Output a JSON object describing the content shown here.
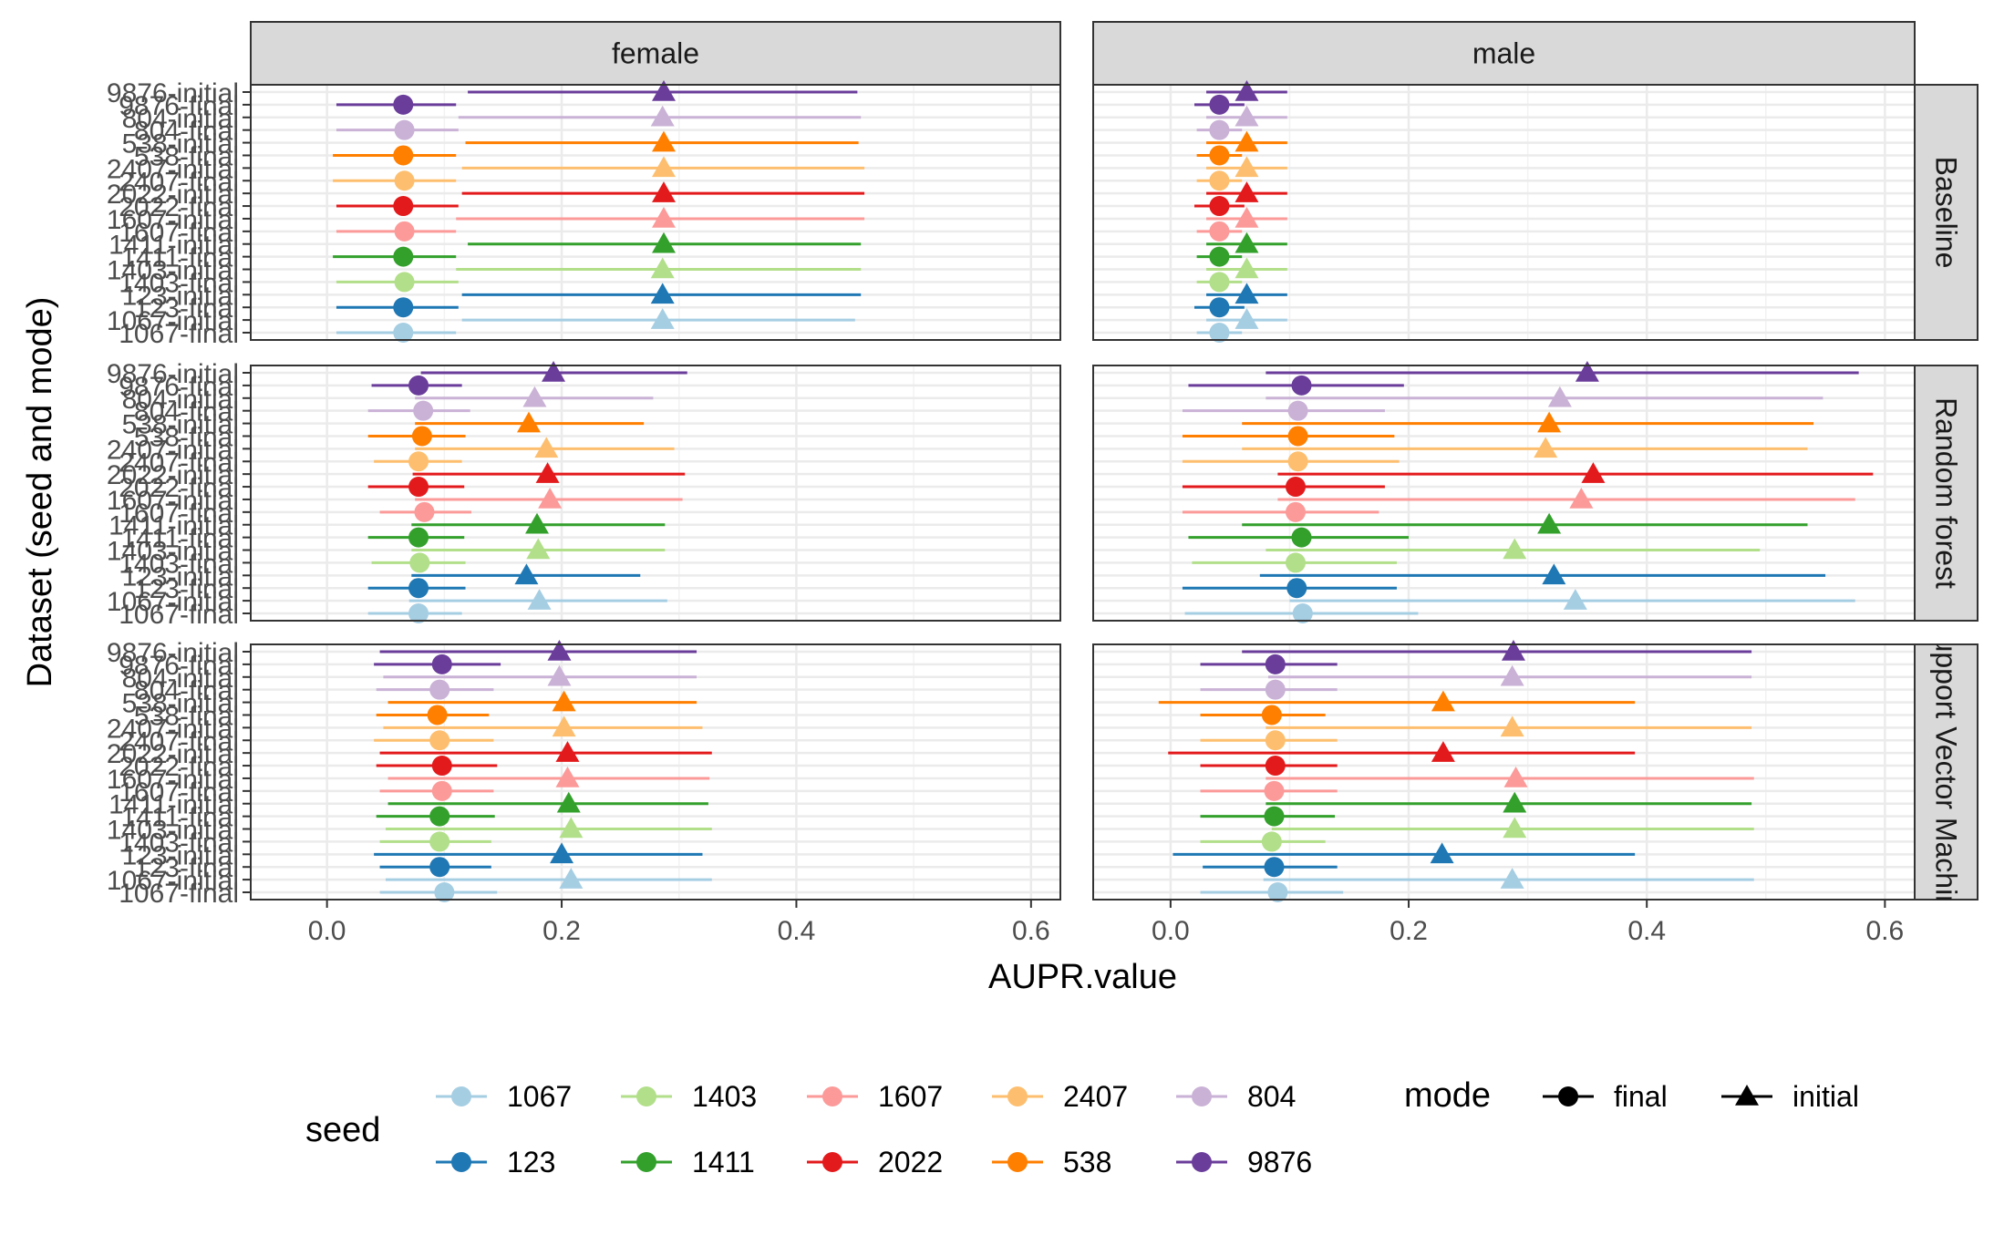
{
  "chart_data": {
    "type": "scatter",
    "subtype": "point-range (dot and whisker)",
    "xlabel": "AUPR.value",
    "ylabel": "Dataset (seed and mode)",
    "xlim": [
      -0.065,
      0.625
    ],
    "x_ticks": [
      0.0,
      0.2,
      0.4,
      0.6
    ],
    "x_tick_labels": [
      "0.0",
      "0.2",
      "0.4",
      "0.6"
    ],
    "facet_columns": [
      "female",
      "male"
    ],
    "facet_rows": [
      "Baseline",
      "Random forest",
      "Support Vector Machine"
    ],
    "facet_row_labels_visible": [
      "Baseline",
      "Random forest",
      "pport Vector Mach"
    ],
    "y_categories": [
      "1067-final",
      "1067-initial",
      "123-final",
      "123-initial",
      "1403-final",
      "1403-initial",
      "1411-final",
      "1411-initial",
      "1607-final",
      "1607-initial",
      "2022-final",
      "2022-initial",
      "2407-final",
      "2407-initial",
      "538-final",
      "538-initial",
      "804-final",
      "804-initial",
      "9876-final",
      "9876-initial"
    ],
    "y_tick_labels": [
      "1067-final",
      "1067-initial",
      "123-final",
      "123-initial",
      "1403-final",
      "1403-initial",
      "1411-final",
      "1411-initial",
      "1607-final",
      "1607-initial",
      "2022-final",
      "2022-initial",
      "2407-final",
      "2407-initial",
      "538-final",
      "538-initial",
      "804-final",
      "804-initial",
      "9876-final",
      "9876-initial"
    ],
    "seeds": [
      "1067",
      "123",
      "1403",
      "1411",
      "1607",
      "2022",
      "2407",
      "538",
      "804",
      "9876"
    ],
    "seed_colors": {
      "1067": "#A6CEE3",
      "123": "#1F78B4",
      "1403": "#B2DF8A",
      "1411": "#33A02C",
      "1607": "#FB9A99",
      "2022": "#E31A1C",
      "2407": "#FDBF6F",
      "538": "#FF7F00",
      "804": "#CAB2D6",
      "9876": "#6A3D9A"
    },
    "grid": true,
    "legend": {
      "position": "bottom",
      "seed_title": "seed",
      "seed_order": [
        "1067",
        "1403",
        "1607",
        "2407",
        "804",
        "123",
        "1411",
        "2022",
        "538",
        "9876"
      ],
      "mode_title": "mode",
      "mode_entries": [
        {
          "label": "final",
          "shape": "circle"
        },
        {
          "label": "initial",
          "shape": "triangle"
        }
      ]
    },
    "panels": [
      {
        "column": "female",
        "row": "Baseline",
        "final": {
          "1067": [
            0.065,
            0.008,
            0.11
          ],
          "123": [
            0.065,
            0.008,
            0.112
          ],
          "1403": [
            0.066,
            0.008,
            0.112
          ],
          "1411": [
            0.065,
            0.005,
            0.11
          ],
          "1607": [
            0.066,
            0.008,
            0.11
          ],
          "2022": [
            0.065,
            0.008,
            0.112
          ],
          "2407": [
            0.066,
            0.005,
            0.11
          ],
          "538": [
            0.065,
            0.005,
            0.11
          ],
          "804": [
            0.066,
            0.008,
            0.112
          ],
          "9876": [
            0.065,
            0.008,
            0.11
          ]
        },
        "initial": {
          "1067": [
            0.286,
            0.115,
            0.45
          ],
          "123": [
            0.286,
            0.115,
            0.455
          ],
          "1403": [
            0.286,
            0.11,
            0.455
          ],
          "1411": [
            0.287,
            0.12,
            0.455
          ],
          "1607": [
            0.287,
            0.11,
            0.458
          ],
          "2022": [
            0.287,
            0.115,
            0.458
          ],
          "2407": [
            0.287,
            0.115,
            0.458
          ],
          "538": [
            0.287,
            0.118,
            0.453
          ],
          "804": [
            0.286,
            0.112,
            0.455
          ],
          "9876": [
            0.287,
            0.12,
            0.452
          ]
        }
      },
      {
        "column": "male",
        "row": "Baseline",
        "final": {
          "1067": [
            0.041,
            0.022,
            0.06
          ],
          "123": [
            0.041,
            0.02,
            0.062
          ],
          "1403": [
            0.041,
            0.022,
            0.06
          ],
          "1411": [
            0.041,
            0.022,
            0.06
          ],
          "1607": [
            0.041,
            0.022,
            0.06
          ],
          "2022": [
            0.041,
            0.02,
            0.062
          ],
          "2407": [
            0.041,
            0.022,
            0.06
          ],
          "538": [
            0.041,
            0.022,
            0.06
          ],
          "804": [
            0.041,
            0.022,
            0.06
          ],
          "9876": [
            0.041,
            0.02,
            0.062
          ]
        },
        "initial": {
          "1067": [
            0.064,
            0.03,
            0.098
          ],
          "123": [
            0.064,
            0.03,
            0.098
          ],
          "1403": [
            0.064,
            0.03,
            0.098
          ],
          "1411": [
            0.064,
            0.03,
            0.098
          ],
          "1607": [
            0.064,
            0.03,
            0.098
          ],
          "2022": [
            0.064,
            0.03,
            0.098
          ],
          "2407": [
            0.064,
            0.03,
            0.098
          ],
          "538": [
            0.064,
            0.03,
            0.098
          ],
          "804": [
            0.064,
            0.03,
            0.098
          ],
          "9876": [
            0.064,
            0.03,
            0.098
          ]
        }
      },
      {
        "column": "female",
        "row": "Random forest",
        "final": {
          "1067": [
            0.078,
            0.035,
            0.115
          ],
          "123": [
            0.078,
            0.035,
            0.118
          ],
          "1403": [
            0.079,
            0.038,
            0.118
          ],
          "1411": [
            0.078,
            0.035,
            0.117
          ],
          "1607": [
            0.083,
            0.045,
            0.123
          ],
          "2022": [
            0.078,
            0.035,
            0.117
          ],
          "2407": [
            0.078,
            0.04,
            0.115
          ],
          "538": [
            0.081,
            0.035,
            0.118
          ],
          "804": [
            0.082,
            0.035,
            0.122
          ],
          "9876": [
            0.078,
            0.038,
            0.115
          ]
        },
        "initial": {
          "1067": [
            0.181,
            0.07,
            0.29
          ],
          "123": [
            0.17,
            0.072,
            0.267
          ],
          "1403": [
            0.18,
            0.072,
            0.288
          ],
          "1411": [
            0.179,
            0.072,
            0.288
          ],
          "1607": [
            0.19,
            0.075,
            0.303
          ],
          "2022": [
            0.188,
            0.073,
            0.305
          ],
          "2407": [
            0.187,
            0.075,
            0.296
          ],
          "538": [
            0.172,
            0.075,
            0.27
          ],
          "804": [
            0.177,
            0.075,
            0.278
          ],
          "9876": [
            0.193,
            0.08,
            0.307
          ]
        }
      },
      {
        "column": "male",
        "row": "Random forest",
        "final": {
          "1067": [
            0.111,
            0.012,
            0.208
          ],
          "123": [
            0.106,
            0.01,
            0.19
          ],
          "1403": [
            0.105,
            0.018,
            0.19
          ],
          "1411": [
            0.11,
            0.015,
            0.2
          ],
          "1607": [
            0.105,
            0.01,
            0.175
          ],
          "2022": [
            0.105,
            0.01,
            0.18
          ],
          "2407": [
            0.107,
            0.01,
            0.192
          ],
          "538": [
            0.107,
            0.01,
            0.188
          ],
          "804": [
            0.107,
            0.01,
            0.18
          ],
          "9876": [
            0.11,
            0.015,
            0.196
          ]
        },
        "initial": {
          "1067": [
            0.34,
            0.1,
            0.575
          ],
          "123": [
            0.322,
            0.075,
            0.55
          ],
          "1403": [
            0.289,
            0.08,
            0.495
          ],
          "1411": [
            0.318,
            0.06,
            0.535
          ],
          "1607": [
            0.345,
            0.09,
            0.575
          ],
          "2022": [
            0.355,
            0.09,
            0.59
          ],
          "2407": [
            0.315,
            0.06,
            0.535
          ],
          "538": [
            0.318,
            0.06,
            0.54
          ],
          "804": [
            0.327,
            0.08,
            0.548
          ],
          "9876": [
            0.35,
            0.08,
            0.578
          ]
        }
      },
      {
        "column": "female",
        "row": "Support Vector Machine",
        "final": {
          "1067": [
            0.1,
            0.045,
            0.145
          ],
          "123": [
            0.096,
            0.045,
            0.14
          ],
          "1403": [
            0.096,
            0.045,
            0.14
          ],
          "1411": [
            0.096,
            0.042,
            0.143
          ],
          "1607": [
            0.098,
            0.045,
            0.142
          ],
          "2022": [
            0.098,
            0.042,
            0.145
          ],
          "2407": [
            0.096,
            0.04,
            0.142
          ],
          "538": [
            0.094,
            0.042,
            0.138
          ],
          "804": [
            0.096,
            0.042,
            0.142
          ],
          "9876": [
            0.098,
            0.04,
            0.148
          ]
        },
        "initial": {
          "1067": [
            0.208,
            0.05,
            0.328
          ],
          "123": [
            0.2,
            0.04,
            0.32
          ],
          "1403": [
            0.208,
            0.05,
            0.328
          ],
          "1411": [
            0.206,
            0.052,
            0.325
          ],
          "1607": [
            0.205,
            0.052,
            0.326
          ],
          "2022": [
            0.205,
            0.045,
            0.328
          ],
          "2407": [
            0.202,
            0.048,
            0.32
          ],
          "538": [
            0.202,
            0.052,
            0.315
          ],
          "804": [
            0.198,
            0.048,
            0.315
          ],
          "9876": [
            0.198,
            0.045,
            0.315
          ]
        }
      },
      {
        "column": "male",
        "row": "Support Vector Machine",
        "final": {
          "1067": [
            0.09,
            0.025,
            0.145
          ],
          "123": [
            0.087,
            0.027,
            0.14
          ],
          "1403": [
            0.085,
            0.025,
            0.13
          ],
          "1411": [
            0.087,
            0.025,
            0.138
          ],
          "1607": [
            0.087,
            0.025,
            0.14
          ],
          "2022": [
            0.088,
            0.025,
            0.14
          ],
          "2407": [
            0.088,
            0.025,
            0.14
          ],
          "538": [
            0.085,
            0.025,
            0.13
          ],
          "804": [
            0.088,
            0.025,
            0.14
          ],
          "9876": [
            0.088,
            0.025,
            0.14
          ]
        },
        "initial": {
          "1067": [
            0.287,
            0.078,
            0.49
          ],
          "123": [
            0.228,
            0.002,
            0.39
          ],
          "1403": [
            0.289,
            0.085,
            0.49
          ],
          "1411": [
            0.289,
            0.08,
            0.488
          ],
          "1607": [
            0.29,
            0.08,
            0.49
          ],
          "2022": [
            0.229,
            -0.002,
            0.39
          ],
          "2407": [
            0.287,
            0.08,
            0.488
          ],
          "538": [
            0.229,
            -0.01,
            0.39
          ],
          "804": [
            0.287,
            0.082,
            0.488
          ],
          "9876": [
            0.288,
            0.06,
            0.488
          ]
        }
      }
    ]
  }
}
